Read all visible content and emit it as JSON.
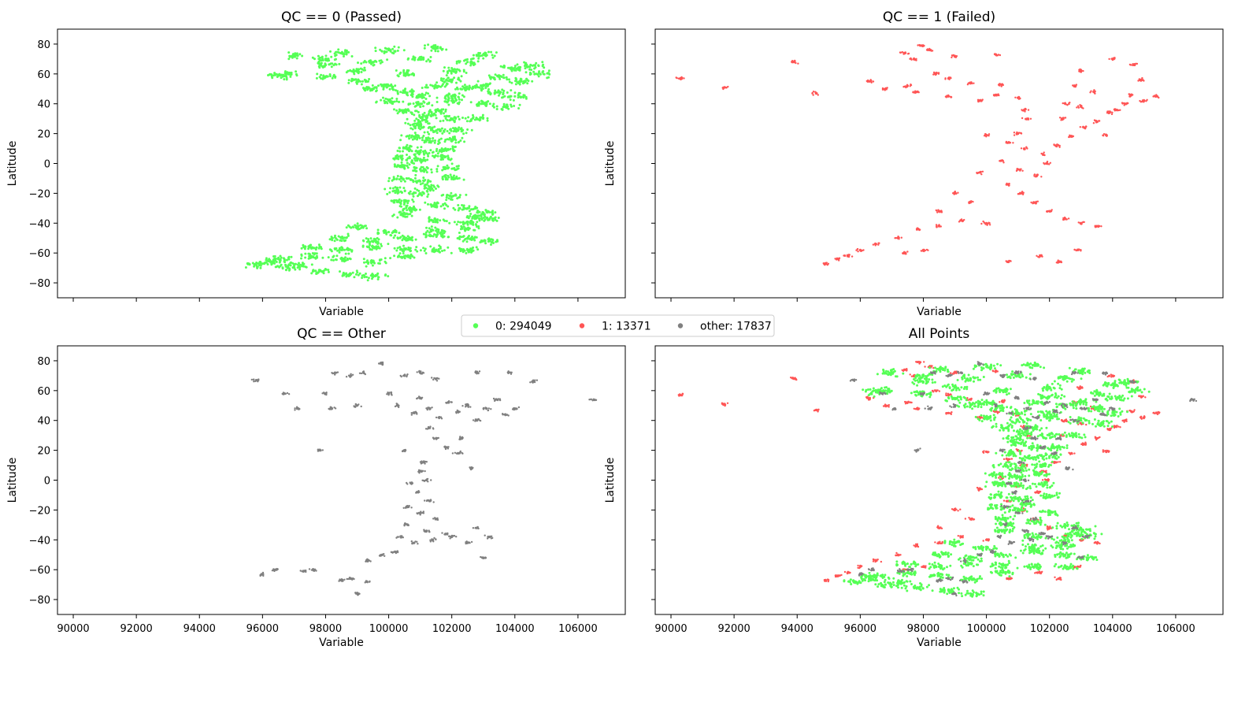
{
  "chart_data": [
    {
      "type": "scatter",
      "title": "QC == 0 (Passed)",
      "xlabel": "Variable",
      "ylabel": "Latitude",
      "xlim": [
        89500,
        107500
      ],
      "ylim": [
        -90,
        90
      ],
      "xticks": [
        90000,
        92000,
        94000,
        96000,
        98000,
        100000,
        102000,
        104000,
        106000
      ],
      "yticks": [
        80,
        60,
        40,
        20,
        0,
        -20,
        -40,
        -60,
        -80
      ],
      "show_xtick_labels": false,
      "series": [
        {
          "name": "0",
          "color": "#55ff55",
          "key": "passed"
        }
      ]
    },
    {
      "type": "scatter",
      "title": "QC == 1 (Failed)",
      "xlabel": "Variable",
      "ylabel": "Latitude",
      "xlim": [
        89500,
        107500
      ],
      "ylim": [
        -90,
        90
      ],
      "xticks": [
        90000,
        92000,
        94000,
        96000,
        98000,
        100000,
        102000,
        104000,
        106000
      ],
      "yticks": [
        80,
        60,
        40,
        20,
        0,
        -20,
        -40,
        -60,
        -80
      ],
      "show_xtick_labels": false,
      "series": [
        {
          "name": "1",
          "color": "#ff5555",
          "key": "failed"
        }
      ]
    },
    {
      "type": "scatter",
      "title": "QC == Other",
      "xlabel": "Variable",
      "ylabel": "Latitude",
      "xlim": [
        89500,
        107500
      ],
      "ylim": [
        -90,
        90
      ],
      "xticks": [
        90000,
        92000,
        94000,
        96000,
        98000,
        100000,
        102000,
        104000,
        106000
      ],
      "yticks": [
        80,
        60,
        40,
        20,
        0,
        -20,
        -40,
        -60,
        -80
      ],
      "show_xtick_labels": true,
      "series": [
        {
          "name": "other",
          "color": "#808080",
          "key": "other"
        }
      ]
    },
    {
      "type": "scatter",
      "title": "All Points",
      "xlabel": "Variable",
      "ylabel": "Latitude",
      "xlim": [
        89500,
        107500
      ],
      "ylim": [
        -90,
        90
      ],
      "xticks": [
        90000,
        92000,
        94000,
        96000,
        98000,
        100000,
        102000,
        104000,
        106000
      ],
      "yticks": [
        80,
        60,
        40,
        20,
        0,
        -20,
        -40,
        -60,
        -80
      ],
      "show_xtick_labels": true,
      "series": [
        {
          "name": "1",
          "color": "#ff5555",
          "key": "failed"
        },
        {
          "name": "0",
          "color": "#55ff55",
          "key": "passed"
        },
        {
          "name": "other",
          "color": "#808080",
          "key": "other"
        }
      ]
    }
  ],
  "legend": {
    "placement": "center",
    "entries": [
      {
        "label": "0: 294049",
        "color": "#55ff55"
      },
      {
        "label": "1: 13371",
        "color": "#ff5555"
      },
      {
        "label": "other: 17837",
        "color": "#808080"
      }
    ]
  },
  "point_clouds": {
    "passed": [
      [
        97000,
        72
      ],
      [
        98500,
        74
      ],
      [
        100000,
        76
      ],
      [
        101500,
        77
      ],
      [
        103000,
        73
      ],
      [
        104500,
        66
      ],
      [
        96800,
        60
      ],
      [
        96500,
        59
      ],
      [
        98000,
        66
      ],
      [
        99500,
        68
      ],
      [
        101000,
        70
      ],
      [
        102500,
        68
      ],
      [
        104000,
        64
      ],
      [
        104800,
        60
      ],
      [
        98000,
        58
      ],
      [
        99000,
        55
      ],
      [
        100500,
        60
      ],
      [
        102000,
        62
      ],
      [
        103500,
        58
      ],
      [
        104200,
        55
      ],
      [
        99500,
        50
      ],
      [
        100500,
        48
      ],
      [
        101500,
        52
      ],
      [
        102500,
        50
      ],
      [
        103500,
        48
      ],
      [
        104000,
        45
      ],
      [
        100000,
        42
      ],
      [
        101000,
        40
      ],
      [
        102000,
        42
      ],
      [
        103000,
        40
      ],
      [
        103700,
        38
      ],
      [
        100500,
        35
      ],
      [
        101200,
        32
      ],
      [
        102000,
        30
      ],
      [
        102800,
        30
      ],
      [
        101000,
        25
      ],
      [
        101500,
        22
      ],
      [
        102200,
        22
      ],
      [
        100800,
        18
      ],
      [
        101300,
        15
      ],
      [
        102000,
        16
      ],
      [
        100600,
        10
      ],
      [
        101100,
        8
      ],
      [
        101800,
        10
      ],
      [
        100400,
        4
      ],
      [
        101000,
        2
      ],
      [
        101700,
        4
      ],
      [
        100400,
        -2
      ],
      [
        101000,
        -4
      ],
      [
        101800,
        -3
      ],
      [
        100400,
        -10
      ],
      [
        101000,
        -12
      ],
      [
        102000,
        -10
      ],
      [
        100300,
        -18
      ],
      [
        101000,
        -20
      ],
      [
        102000,
        -22
      ],
      [
        100500,
        -26
      ],
      [
        101500,
        -28
      ],
      [
        102500,
        -30
      ],
      [
        103000,
        -33
      ],
      [
        100500,
        -34
      ],
      [
        101500,
        -38
      ],
      [
        102500,
        -40
      ],
      [
        103200,
        -37
      ],
      [
        99000,
        -42
      ],
      [
        100000,
        -46
      ],
      [
        101500,
        -45
      ],
      [
        102500,
        -44
      ],
      [
        98500,
        -50
      ],
      [
        99500,
        -52
      ],
      [
        100500,
        -50
      ],
      [
        101500,
        -48
      ],
      [
        102500,
        -50
      ],
      [
        103200,
        -52
      ],
      [
        97500,
        -56
      ],
      [
        98500,
        -58
      ],
      [
        99500,
        -56
      ],
      [
        100500,
        -57
      ],
      [
        101500,
        -58
      ],
      [
        102500,
        -58
      ],
      [
        96500,
        -64
      ],
      [
        97500,
        -62
      ],
      [
        98500,
        -64
      ],
      [
        99500,
        -66
      ],
      [
        100500,
        -62
      ],
      [
        95800,
        -68
      ],
      [
        96800,
        -70
      ],
      [
        97800,
        -72
      ],
      [
        98800,
        -74
      ],
      [
        99500,
        -76
      ],
      [
        96300,
        -66
      ],
      [
        97200,
        -68
      ],
      [
        101000,
        45
      ],
      [
        100000,
        52
      ],
      [
        102000,
        45
      ],
      [
        99000,
        62
      ],
      [
        98000,
        70
      ],
      [
        102000,
        56
      ],
      [
        103000,
        52
      ],
      [
        101500,
        35
      ],
      [
        101000,
        28
      ],
      [
        100700,
        -30
      ],
      [
        101300,
        -16
      ],
      [
        102800,
        -36
      ]
    ],
    "failed": [
      [
        90300,
        57
      ],
      [
        91700,
        51
      ],
      [
        93900,
        68
      ],
      [
        94600,
        47
      ],
      [
        97400,
        74
      ],
      [
        97700,
        70
      ],
      [
        97900,
        79
      ],
      [
        98200,
        76
      ],
      [
        99000,
        72
      ],
      [
        100300,
        73
      ],
      [
        98400,
        60
      ],
      [
        98800,
        57
      ],
      [
        99500,
        54
      ],
      [
        100500,
        53
      ],
      [
        97500,
        52
      ],
      [
        96300,
        55
      ],
      [
        96800,
        50
      ],
      [
        97800,
        48
      ],
      [
        98800,
        45
      ],
      [
        99800,
        42
      ],
      [
        100300,
        46
      ],
      [
        101000,
        44
      ],
      [
        101200,
        36
      ],
      [
        101300,
        30
      ],
      [
        101000,
        20
      ],
      [
        100700,
        14
      ],
      [
        101200,
        10
      ],
      [
        101800,
        6
      ],
      [
        102200,
        12
      ],
      [
        102700,
        18
      ],
      [
        103100,
        24
      ],
      [
        103500,
        28
      ],
      [
        103900,
        34
      ],
      [
        104400,
        40
      ],
      [
        104600,
        46
      ],
      [
        104900,
        56
      ],
      [
        104700,
        66
      ],
      [
        104000,
        70
      ],
      [
        103000,
        62
      ],
      [
        102800,
        52
      ],
      [
        103400,
        48
      ],
      [
        102500,
        40
      ],
      [
        100500,
        2
      ],
      [
        101000,
        -4
      ],
      [
        101600,
        -8
      ],
      [
        100700,
        -14
      ],
      [
        101100,
        -20
      ],
      [
        101500,
        -26
      ],
      [
        102000,
        -32
      ],
      [
        102500,
        -37
      ],
      [
        103000,
        -40
      ],
      [
        103500,
        -42
      ],
      [
        99000,
        -20
      ],
      [
        99500,
        -26
      ],
      [
        98500,
        -32
      ],
      [
        99200,
        -38
      ],
      [
        100000,
        -40
      ],
      [
        98500,
        -42
      ],
      [
        97800,
        -44
      ],
      [
        97200,
        -50
      ],
      [
        96500,
        -54
      ],
      [
        96000,
        -58
      ],
      [
        95600,
        -62
      ],
      [
        95300,
        -64
      ],
      [
        94900,
        -67
      ],
      [
        100700,
        -66
      ],
      [
        101700,
        -62
      ],
      [
        102300,
        -66
      ],
      [
        102900,
        -58
      ],
      [
        105400,
        45
      ],
      [
        105000,
        42
      ],
      [
        103800,
        19
      ],
      [
        100000,
        19
      ],
      [
        99800,
        -6
      ],
      [
        103000,
        38
      ],
      [
        102400,
        30
      ],
      [
        104100,
        36
      ],
      [
        98000,
        -58
      ],
      [
        97400,
        -60
      ],
      [
        101900,
        0
      ]
    ],
    "other": [
      [
        95800,
        67
      ],
      [
        96000,
        -63
      ],
      [
        96400,
        -60
      ],
      [
        96700,
        58
      ],
      [
        97100,
        48
      ],
      [
        97300,
        -61
      ],
      [
        97600,
        -60
      ],
      [
        97800,
        20
      ],
      [
        98000,
        58
      ],
      [
        98200,
        48
      ],
      [
        98300,
        72
      ],
      [
        98500,
        -67
      ],
      [
        98800,
        70
      ],
      [
        99000,
        50
      ],
      [
        99300,
        -68
      ],
      [
        99200,
        72
      ],
      [
        99800,
        78
      ],
      [
        100000,
        58
      ],
      [
        100300,
        50
      ],
      [
        100500,
        70
      ],
      [
        100800,
        45
      ],
      [
        101000,
        55
      ],
      [
        101300,
        48
      ],
      [
        101600,
        42
      ],
      [
        101900,
        52
      ],
      [
        102200,
        46
      ],
      [
        102500,
        50
      ],
      [
        102800,
        40
      ],
      [
        103100,
        48
      ],
      [
        103400,
        54
      ],
      [
        103700,
        44
      ],
      [
        104000,
        48
      ],
      [
        104600,
        66
      ],
      [
        101000,
        72
      ],
      [
        101500,
        68
      ],
      [
        102800,
        72
      ],
      [
        103800,
        72
      ],
      [
        101300,
        35
      ],
      [
        101500,
        28
      ],
      [
        101800,
        22
      ],
      [
        102200,
        18
      ],
      [
        101100,
        12
      ],
      [
        101000,
        6
      ],
      [
        100700,
        -2
      ],
      [
        101200,
        0
      ],
      [
        100900,
        -8
      ],
      [
        101300,
        -14
      ],
      [
        100600,
        -18
      ],
      [
        101000,
        -22
      ],
      [
        101500,
        -26
      ],
      [
        100600,
        -30
      ],
      [
        101200,
        -34
      ],
      [
        101800,
        -36
      ],
      [
        100400,
        -38
      ],
      [
        100800,
        -42
      ],
      [
        101400,
        -40
      ],
      [
        102000,
        -38
      ],
      [
        102500,
        -42
      ],
      [
        102800,
        -32
      ],
      [
        103200,
        -38
      ],
      [
        103000,
        -52
      ],
      [
        100200,
        -48
      ],
      [
        99800,
        -50
      ],
      [
        99300,
        -54
      ],
      [
        98800,
        -66
      ],
      [
        99000,
        -76
      ],
      [
        106500,
        54
      ],
      [
        102600,
        8
      ],
      [
        100500,
        20
      ],
      [
        102300,
        28
      ]
    ]
  }
}
